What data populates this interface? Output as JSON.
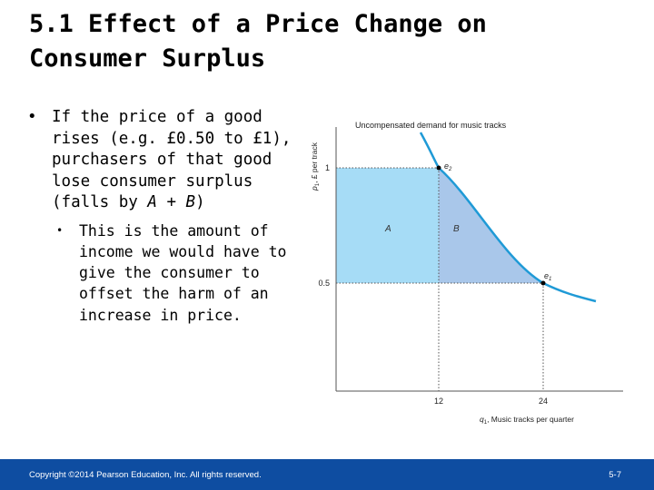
{
  "slide": {
    "title_line1": "5.1  Effect of a Price Change on",
    "title_line2": "Consumer Surplus",
    "bullet1_text_a": "If the price of a good rises (e.g. £0.50 to £1), purchasers of that good lose consumer surplus (falls by ",
    "bullet1_var_a": "A",
    "bullet1_plus": " + ",
    "bullet1_var_b": "B",
    "bullet1_close": ")",
    "bullet2_text": "This is the amount of income we would have to give the consumer to offset the harm of an increase in price."
  },
  "chart_data": {
    "type": "line",
    "title": "Uncompensated demand for music tracks",
    "xlabel_symbol": "q",
    "xlabel_sub": "1",
    "xlabel_rest": ", Music tracks per quarter",
    "ylabel_symbol": "p",
    "ylabel_sub": "1",
    "ylabel_rest": ", £ per track",
    "x_ticks": [
      "12",
      "24"
    ],
    "y_ticks": [
      "1",
      "0.5"
    ],
    "points": [
      {
        "name": "e",
        "sub": "2",
        "q": 12,
        "p": 1
      },
      {
        "name": "e",
        "sub": "1",
        "q": 24,
        "p": 0.5
      }
    ],
    "area_labels": [
      "A",
      "B"
    ],
    "colors": {
      "curve": "#1f9ad6",
      "area_a": "#a6dcf6",
      "area_b": "#a9c7ea",
      "footer": "#0e4da1"
    }
  },
  "footer": {
    "copyright": "Copyright ©2014 Pearson Education, Inc. All rights reserved.",
    "page": "5-7"
  }
}
